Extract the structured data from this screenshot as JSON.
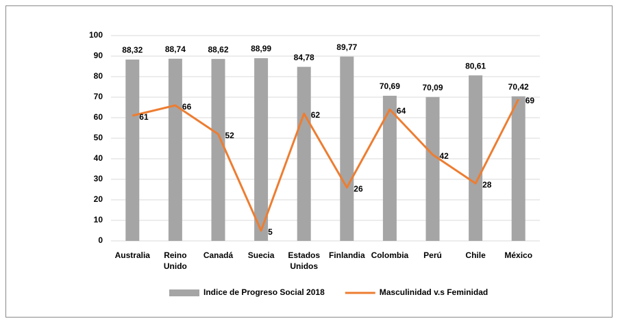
{
  "chart_data": {
    "type": "bar",
    "categories": [
      "Australia",
      "Reino Unido",
      "Canadá",
      "Suecia",
      "Estados Unidos",
      "Finlandia",
      "Colombia",
      "Perú",
      "Chile",
      "México"
    ],
    "series": [
      {
        "name": "Indice de Progreso Social 2018",
        "type": "bar",
        "color": "#a5a5a5",
        "values": [
          88.32,
          88.74,
          88.62,
          88.99,
          84.78,
          89.77,
          70.69,
          70.09,
          80.61,
          70.42
        ],
        "value_labels": [
          "88,32",
          "88,74",
          "88,62",
          "88,99",
          "84,78",
          "89,77",
          "70,69",
          "70,09",
          "80,61",
          "70,42"
        ]
      },
      {
        "name": "Masculinidad v.s Feminidad",
        "type": "line",
        "color": "#ed7d31",
        "values": [
          61,
          66,
          52,
          5,
          62,
          26,
          64,
          42,
          28,
          69
        ]
      }
    ],
    "ylim": [
      0,
      100
    ],
    "yticks": [
      0,
      10,
      20,
      30,
      40,
      50,
      60,
      70,
      80,
      90,
      100
    ],
    "grid": true,
    "legend": "bottom"
  }
}
